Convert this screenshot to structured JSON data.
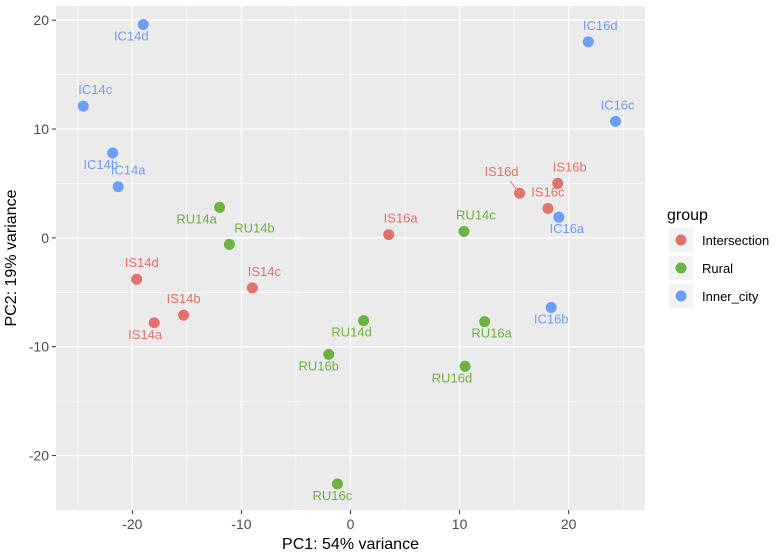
{
  "chart_data": {
    "type": "scatter",
    "xlabel": "PC1: 54% variance",
    "ylabel": "PC2: 19% variance",
    "xlim": [
      -27,
      27
    ],
    "ylim": [
      -25,
      21.3
    ],
    "xticks": [
      -20,
      -10,
      0,
      10,
      20
    ],
    "yticks": [
      -20,
      -10,
      0,
      10,
      20
    ],
    "grid": true,
    "legend": {
      "title": "group",
      "position": "right",
      "entries": [
        {
          "name": "Intersection",
          "color": "#E0736B"
        },
        {
          "name": "Rural",
          "color": "#6DB33F"
        },
        {
          "name": "Inner_city",
          "color": "#6D9EF7"
        }
      ]
    },
    "points": [
      {
        "label": "IS14a",
        "group": "Intersection",
        "x": -18.0,
        "y": -7.8
      },
      {
        "label": "IS14b",
        "group": "Intersection",
        "x": -15.3,
        "y": -7.1
      },
      {
        "label": "IS14c",
        "group": "Intersection",
        "x": -9.0,
        "y": -4.6
      },
      {
        "label": "IS14d",
        "group": "Intersection",
        "x": -19.6,
        "y": -3.8
      },
      {
        "label": "IS16a",
        "group": "Intersection",
        "x": 3.5,
        "y": 0.3
      },
      {
        "label": "IS16b",
        "group": "Intersection",
        "x": 19.0,
        "y": 5.0
      },
      {
        "label": "IS16c",
        "group": "Intersection",
        "x": 18.1,
        "y": 2.7
      },
      {
        "label": "IS16d",
        "group": "Intersection",
        "x": 15.5,
        "y": 4.1
      },
      {
        "label": "RU14a",
        "group": "Rural",
        "x": -12.0,
        "y": 2.8
      },
      {
        "label": "RU14b",
        "group": "Rural",
        "x": -11.1,
        "y": -0.6
      },
      {
        "label": "RU14c",
        "group": "Rural",
        "x": 10.4,
        "y": 0.6
      },
      {
        "label": "RU14d",
        "group": "Rural",
        "x": 1.2,
        "y": -7.6
      },
      {
        "label": "RU16a",
        "group": "Rural",
        "x": 12.3,
        "y": -7.7
      },
      {
        "label": "RU16b",
        "group": "Rural",
        "x": -2.0,
        "y": -10.7
      },
      {
        "label": "RU16c",
        "group": "Rural",
        "x": -1.2,
        "y": -22.6
      },
      {
        "label": "RU16d",
        "group": "Rural",
        "x": 10.5,
        "y": -11.8
      },
      {
        "label": "IC14a",
        "group": "Inner_city",
        "x": -21.3,
        "y": 4.7
      },
      {
        "label": "IC14b",
        "group": "Inner_city",
        "x": -21.8,
        "y": 7.8
      },
      {
        "label": "IC14c",
        "group": "Inner_city",
        "x": -24.5,
        "y": 12.1
      },
      {
        "label": "IC14d",
        "group": "Inner_city",
        "x": -19.0,
        "y": 19.6
      },
      {
        "label": "IC16a",
        "group": "Inner_city",
        "x": 19.1,
        "y": 1.9
      },
      {
        "label": "IC16b",
        "group": "Inner_city",
        "x": 18.4,
        "y": -6.4
      },
      {
        "label": "IC16c",
        "group": "Inner_city",
        "x": 24.3,
        "y": 10.7
      },
      {
        "label": "IC16d",
        "group": "Inner_city",
        "x": 21.8,
        "y": 18.0
      }
    ]
  }
}
